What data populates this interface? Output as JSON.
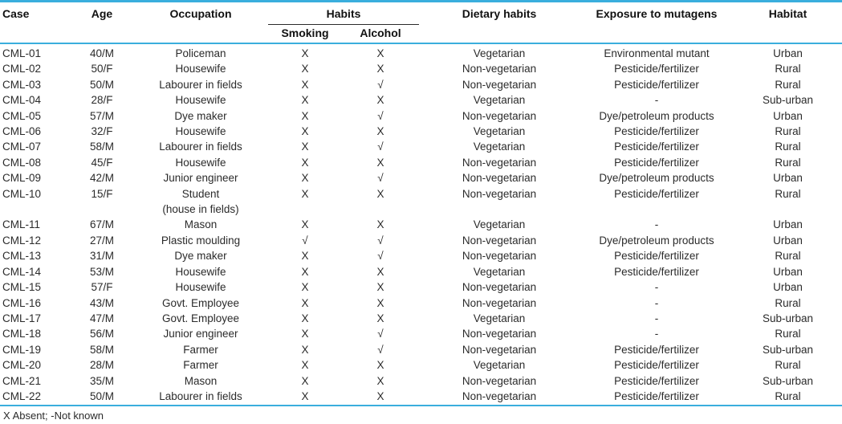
{
  "colors": {
    "accent_line": "#3aaedd",
    "text": "#2b2b2b",
    "header_text": "#111111"
  },
  "table": {
    "headers": {
      "case": "Case",
      "age": "Age",
      "occupation": "Occupation",
      "habits_group": "Habits",
      "smoking": "Smoking",
      "alcohol": "Alcohol",
      "dietary": "Dietary habits",
      "exposure": "Exposure to mutagens",
      "habitat": "Habitat"
    },
    "symbols": {
      "absent": "X",
      "present": "√",
      "not_known": "-"
    },
    "rows": [
      {
        "case": "CML-01",
        "age": "40/M",
        "occupation": "Policeman",
        "smoking": "X",
        "alcohol": "X",
        "dietary": "Vegetarian",
        "exposure": "Environmental mutant",
        "habitat": "Urban"
      },
      {
        "case": "CML-02",
        "age": "50/F",
        "occupation": "Housewife",
        "smoking": "X",
        "alcohol": "X",
        "dietary": "Non-vegetarian",
        "exposure": "Pesticide/fertilizer",
        "habitat": "Rural"
      },
      {
        "case": "CML-03",
        "age": "50/M",
        "occupation": "Labourer in fields",
        "smoking": "X",
        "alcohol": "√",
        "dietary": "Non-vegetarian",
        "exposure": "Pesticide/fertilizer",
        "habitat": "Rural"
      },
      {
        "case": "CML-04",
        "age": "28/F",
        "occupation": "Housewife",
        "smoking": "X",
        "alcohol": "X",
        "dietary": "Vegetarian",
        "exposure": "-",
        "habitat": "Sub-urban"
      },
      {
        "case": "CML-05",
        "age": "57/M",
        "occupation": "Dye maker",
        "smoking": "X",
        "alcohol": "√",
        "dietary": "Non-vegetarian",
        "exposure": "Dye/petroleum products",
        "habitat": "Urban"
      },
      {
        "case": "CML-06",
        "age": "32/F",
        "occupation": "Housewife",
        "smoking": "X",
        "alcohol": "X",
        "dietary": "Vegetarian",
        "exposure": "Pesticide/fertilizer",
        "habitat": "Rural"
      },
      {
        "case": "CML-07",
        "age": "58/M",
        "occupation": "Labourer in fields",
        "smoking": "X",
        "alcohol": "√",
        "dietary": "Vegetarian",
        "exposure": "Pesticide/fertilizer",
        "habitat": "Rural"
      },
      {
        "case": "CML-08",
        "age": "45/F",
        "occupation": "Housewife",
        "smoking": "X",
        "alcohol": "X",
        "dietary": "Non-vegetarian",
        "exposure": "Pesticide/fertilizer",
        "habitat": "Rural"
      },
      {
        "case": "CML-09",
        "age": "42/M",
        "occupation": "Junior engineer",
        "smoking": "X",
        "alcohol": "√",
        "dietary": "Non-vegetarian",
        "exposure": "Dye/petroleum products",
        "habitat": "Urban"
      },
      {
        "case": "CML-10",
        "age": "15/F",
        "occupation": "Student",
        "occupation_line2": "(house in fields)",
        "smoking": "X",
        "alcohol": "X",
        "dietary": "Non-vegetarian",
        "exposure": "Pesticide/fertilizer",
        "habitat": "Rural"
      },
      {
        "case": "CML-11",
        "age": "67/M",
        "occupation": "Mason",
        "smoking": "X",
        "alcohol": "X",
        "dietary": "Vegetarian",
        "exposure": "-",
        "habitat": "Urban"
      },
      {
        "case": "CML-12",
        "age": "27/M",
        "occupation": "Plastic moulding",
        "smoking": "√",
        "alcohol": "√",
        "dietary": "Non-vegetarian",
        "exposure": "Dye/petroleum products",
        "habitat": "Urban"
      },
      {
        "case": "CML-13",
        "age": "31/M",
        "occupation": "Dye maker",
        "smoking": "X",
        "alcohol": "√",
        "dietary": "Non-vegetarian",
        "exposure": "Pesticide/fertilizer",
        "habitat": "Rural"
      },
      {
        "case": "CML-14",
        "age": "53/M",
        "occupation": "Housewife",
        "smoking": "X",
        "alcohol": "X",
        "dietary": "Vegetarian",
        "exposure": "Pesticide/fertilizer",
        "habitat": "Urban"
      },
      {
        "case": "CML-15",
        "age": "57/F",
        "occupation": "Housewife",
        "smoking": "X",
        "alcohol": "X",
        "dietary": "Non-vegetarian",
        "exposure": "-",
        "habitat": "Urban"
      },
      {
        "case": "CML-16",
        "age": "43/M",
        "occupation": "Govt. Employee",
        "smoking": "X",
        "alcohol": "X",
        "dietary": "Non-vegetarian",
        "exposure": "-",
        "habitat": "Rural"
      },
      {
        "case": "CML-17",
        "age": "47/M",
        "occupation": "Govt. Employee",
        "smoking": "X",
        "alcohol": "X",
        "dietary": "Vegetarian",
        "exposure": "-",
        "habitat": "Sub-urban"
      },
      {
        "case": "CML-18",
        "age": "56/M",
        "occupation": "Junior engineer",
        "smoking": "X",
        "alcohol": "√",
        "dietary": "Non-vegetarian",
        "exposure": "-",
        "habitat": "Rural"
      },
      {
        "case": "CML-19",
        "age": "58/M",
        "occupation": "Farmer",
        "smoking": "X",
        "alcohol": "√",
        "dietary": "Non-vegetarian",
        "exposure": "Pesticide/fertilizer",
        "habitat": "Sub-urban"
      },
      {
        "case": "CML-20",
        "age": "28/M",
        "occupation": "Farmer",
        "smoking": "X",
        "alcohol": "X",
        "dietary": "Vegetarian",
        "exposure": "Pesticide/fertilizer",
        "habitat": "Rural"
      },
      {
        "case": "CML-21",
        "age": "35/M",
        "occupation": "Mason",
        "smoking": "X",
        "alcohol": "X",
        "dietary": "Non-vegetarian",
        "exposure": "Pesticide/fertilizer",
        "habitat": "Sub-urban"
      },
      {
        "case": "CML-22",
        "age": "50/M",
        "occupation": "Labourer in fields",
        "smoking": "X",
        "alcohol": "X",
        "dietary": "Non-vegetarian",
        "exposure": "Pesticide/fertilizer",
        "habitat": "Rural"
      }
    ]
  },
  "footnote": "X Absent; -Not known"
}
